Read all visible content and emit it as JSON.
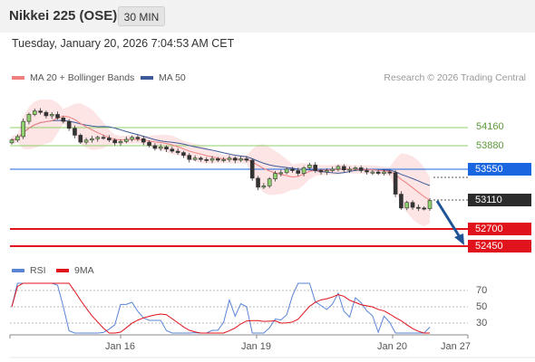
{
  "header": {
    "title": "Nikkei 225 (OSE)",
    "timeframe_button": "30 MIN"
  },
  "datetime": "Tuesday, January 20, 2026 7:04:53 AM CET",
  "legend": {
    "ma20_label": "MA 20 + Bollinger Bands",
    "ma50_label": "MA 50",
    "research_credit": "Research © 2026 Trading Central"
  },
  "colors": {
    "ma20": "#f08080",
    "ma50": "#3e5a99",
    "resistance": "#8fcf6b",
    "pivot": "#1a66e0",
    "support": "#e0121b",
    "current": "#2b2b2b",
    "arrow": "#1f5596",
    "rsi": "#5a84d6",
    "rsi_ma": "#e0121b",
    "bollinger_fill": "#fde0e0"
  },
  "price_levels": [
    {
      "label": "54160",
      "kind": "resistance"
    },
    {
      "label": "53880",
      "kind": "resistance"
    },
    {
      "label": "53550",
      "kind": "pivot"
    },
    {
      "label": "53110",
      "kind": "current"
    },
    {
      "label": "52700",
      "kind": "support"
    },
    {
      "label": "52450",
      "kind": "support"
    }
  ],
  "rsi_panel": {
    "rsi_label": "RSI",
    "ma_label": "9MA",
    "levels": [
      "70",
      "50",
      "30"
    ]
  },
  "x_axis": {
    "labels": [
      "Jan 16",
      "Jan 19",
      "Jan 20",
      "Jan 27"
    ]
  },
  "chart_data": {
    "type": "candlestick",
    "y_axis_labels": [
      54160,
      53880,
      53550,
      53110,
      52700,
      52450
    ],
    "x_labels": [
      "Jan 16",
      "Jan 19",
      "Jan 20",
      "Jan 27"
    ],
    "series": [
      {
        "name": "MA 20 + Bollinger Bands"
      },
      {
        "name": "MA 50"
      },
      {
        "name": "RSI"
      },
      {
        "name": "9MA"
      }
    ],
    "rsi_levels": [
      70,
      50,
      30
    ],
    "close_approx": [
      53980,
      54030,
      54250,
      54350,
      54400,
      54380,
      54330,
      54350,
      54300,
      54250,
      54150,
      54050,
      53950,
      53980,
      54000,
      54020,
      54010,
      53980,
      53940,
      53960,
      53990,
      54020,
      54000,
      53950,
      53900,
      53860,
      53880,
      53850,
      53820,
      53800,
      53760,
      53700,
      53720,
      53700,
      53690,
      53710,
      53690,
      53700,
      53720,
      53690,
      53710,
      53690,
      53430,
      53300,
      53320,
      53420,
      53500,
      53510,
      53560,
      53540,
      53500,
      53580,
      53620,
      53540,
      53520,
      53540,
      53560,
      53600,
      53550,
      53560,
      53580,
      53540,
      53520,
      53520,
      53500,
      53520,
      53510,
      53200,
      53000,
      53080,
      53010,
      53000,
      52990,
      53110
    ]
  }
}
